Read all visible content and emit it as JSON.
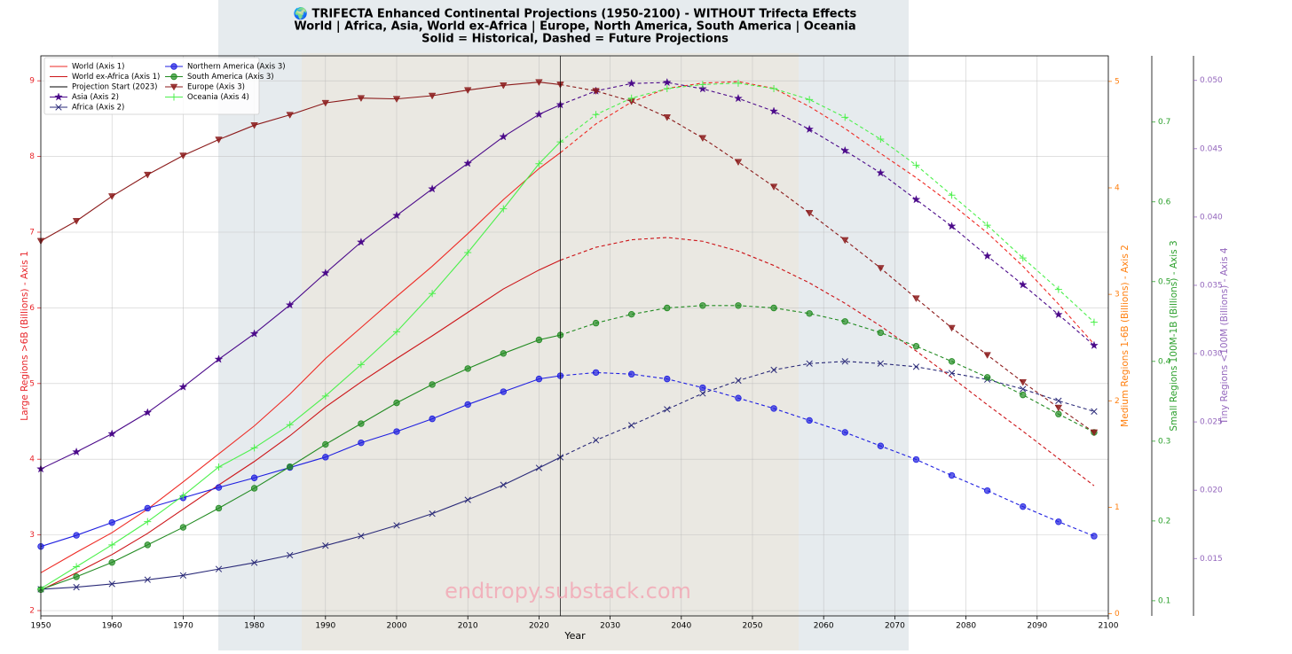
{
  "chart_data": {
    "type": "line",
    "title": [
      "🌍 TRIFECTA Enhanced Continental Projections (1950-2100) - WITHOUT Trifecta Effects",
      "World | Africa, Asia, World ex-Africa | Europe, North America, South America | Oceania",
      "Solid = Historical, Dashed = Future Projections"
    ],
    "xlabel": "Year",
    "ylabel": "Large Regions >6B (Billions) - Axis 1",
    "y2label": "Medium Regions 1-6B (Billions) - Axis 2",
    "y3label": "Small Regions 100M-1B (Billions) - Axis 3",
    "y4label": "Tiny Regions <100M (Billions) - Axis 4",
    "axis_colors": {
      "y": "#e8262b",
      "y2": "#ff7f0e",
      "y3": "#2ca02c",
      "y4": "#9467bd"
    },
    "watermark": "endtropy.substack.com",
    "grid": true,
    "legend": "upper left",
    "xlim": [
      1950,
      2100
    ],
    "xticks": [
      1950,
      1960,
      1970,
      1980,
      1990,
      2000,
      2010,
      2020,
      2030,
      2040,
      2050,
      2060,
      2070,
      2080,
      2090,
      2100
    ],
    "ylim": [
      1.93,
      9.33
    ],
    "yticks": [
      2,
      3,
      4,
      5,
      6,
      7,
      8,
      9
    ],
    "y2lim": [
      -0.02,
      5.24
    ],
    "y2ticks": [
      0,
      1,
      2,
      3,
      4,
      5
    ],
    "y3lim": [
      0.081,
      0.783
    ],
    "y3ticks": [
      0.1,
      0.2,
      0.3,
      0.4,
      0.5,
      0.6,
      0.7
    ],
    "y4lim": [
      0.0108,
      0.0518
    ],
    "y4ticks": [
      0.015,
      {
        "value": 0.02,
        "label": "0.020"
      },
      0.025,
      {
        "value": 0.03,
        "label": "0.030"
      },
      0.035,
      {
        "value": 0.04,
        "label": "0.040"
      },
      0.045,
      {
        "value": 0.05,
        "label": "0.050"
      }
    ],
    "projection_start": {
      "name": "Projection Start (2023)",
      "x": 2023,
      "color": "#000000"
    },
    "x": [
      1950,
      1955,
      1960,
      1965,
      1970,
      1975,
      1980,
      1985,
      1990,
      1995,
      2000,
      2005,
      2010,
      2015,
      2020,
      2023,
      2028,
      2033,
      2038,
      2043,
      2048,
      2053,
      2058,
      2063,
      2068,
      2073,
      2078,
      2083,
      2088,
      2093,
      2098
    ],
    "series": [
      {
        "name": "World (Axis 1)",
        "color": "#ee2a24",
        "axis": "y",
        "values": [
          2.5,
          2.77,
          3.03,
          3.34,
          3.7,
          4.07,
          4.44,
          4.86,
          5.33,
          5.74,
          6.15,
          6.55,
          6.98,
          7.43,
          7.84,
          8.05,
          8.43,
          8.72,
          8.9,
          8.97,
          8.99,
          8.9,
          8.66,
          8.37,
          8.04,
          7.72,
          7.37,
          6.99,
          6.55,
          6.05,
          5.52
        ]
      },
      {
        "name": "World ex-Africa (Axis 1)",
        "color": "#cc1418",
        "axis": "y",
        "values": [
          2.27,
          2.5,
          2.74,
          3.02,
          3.34,
          3.66,
          3.97,
          4.31,
          4.69,
          5.02,
          5.33,
          5.63,
          5.94,
          6.25,
          6.5,
          6.63,
          6.8,
          6.9,
          6.93,
          6.88,
          6.75,
          6.56,
          6.33,
          6.06,
          5.76,
          5.43,
          5.08,
          4.72,
          4.37,
          4.01,
          3.65
        ]
      },
      {
        "name": "Asia (Axis 2)",
        "color": "#4b0a8a",
        "axis": "y2",
        "marker": "star",
        "values": [
          1.36,
          1.52,
          1.69,
          1.89,
          2.13,
          2.39,
          2.63,
          2.9,
          3.2,
          3.49,
          3.74,
          3.99,
          4.23,
          4.48,
          4.69,
          4.78,
          4.91,
          4.98,
          4.99,
          4.93,
          4.84,
          4.72,
          4.55,
          4.35,
          4.14,
          3.89,
          3.64,
          3.36,
          3.09,
          2.81,
          2.52
        ]
      },
      {
        "name": "Africa (Axis 2)",
        "color": "#2a2a78",
        "axis": "y2",
        "marker": "x",
        "values": [
          0.23,
          0.25,
          0.28,
          0.32,
          0.36,
          0.42,
          0.48,
          0.55,
          0.64,
          0.73,
          0.83,
          0.94,
          1.07,
          1.21,
          1.37,
          1.47,
          1.63,
          1.77,
          1.92,
          2.07,
          2.19,
          2.29,
          2.35,
          2.37,
          2.35,
          2.32,
          2.26,
          2.2,
          2.11,
          2.0,
          1.9
        ]
      },
      {
        "name": "Northern America (Axis 3)",
        "color": "#1f1fe0",
        "axis": "y3",
        "marker": "circle",
        "values": [
          0.168,
          0.182,
          0.198,
          0.216,
          0.229,
          0.242,
          0.254,
          0.267,
          0.28,
          0.298,
          0.312,
          0.328,
          0.346,
          0.362,
          0.378,
          0.382,
          0.386,
          0.384,
          0.378,
          0.367,
          0.354,
          0.341,
          0.326,
          0.311,
          0.294,
          0.277,
          0.257,
          0.238,
          0.218,
          0.199,
          0.181
        ]
      },
      {
        "name": "South America (Axis 3)",
        "color": "#228b22",
        "axis": "y3",
        "marker": "circle",
        "values": [
          0.114,
          0.13,
          0.148,
          0.17,
          0.192,
          0.216,
          0.241,
          0.268,
          0.296,
          0.322,
          0.348,
          0.371,
          0.391,
          0.41,
          0.427,
          0.433,
          0.448,
          0.459,
          0.467,
          0.47,
          0.47,
          0.467,
          0.46,
          0.45,
          0.436,
          0.419,
          0.4,
          0.38,
          0.358,
          0.334,
          0.311
        ]
      },
      {
        "name": "Europe (Axis 3)",
        "color": "#8b1a1a",
        "axis": "y3",
        "marker": "triangle_down",
        "values": [
          0.551,
          0.576,
          0.607,
          0.634,
          0.658,
          0.678,
          0.696,
          0.709,
          0.724,
          0.73,
          0.729,
          0.733,
          0.74,
          0.746,
          0.75,
          0.747,
          0.739,
          0.726,
          0.706,
          0.68,
          0.65,
          0.619,
          0.586,
          0.552,
          0.517,
          0.479,
          0.442,
          0.408,
          0.374,
          0.342,
          0.311
        ]
      },
      {
        "name": "Oceania (Axis 4)",
        "color": "#4cf04c",
        "axis": "y4",
        "marker": "plus",
        "values": [
          0.0128,
          0.0144,
          0.016,
          0.0177,
          0.0196,
          0.0217,
          0.0231,
          0.0248,
          0.0269,
          0.0292,
          0.0316,
          0.0344,
          0.0374,
          0.0406,
          0.0439,
          0.0455,
          0.0475,
          0.0487,
          0.0494,
          0.0497,
          0.0498,
          0.0494,
          0.0486,
          0.0473,
          0.0457,
          0.0438,
          0.0416,
          0.0394,
          0.037,
          0.0347,
          0.0323
        ]
      }
    ]
  }
}
